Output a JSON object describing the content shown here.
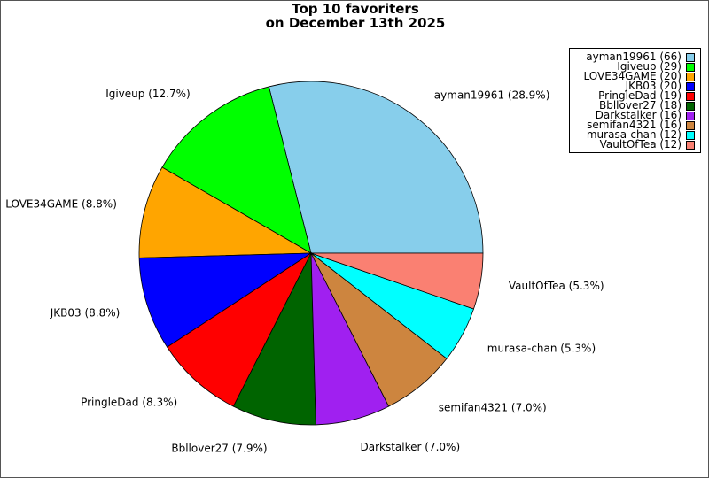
{
  "chart_data": {
    "type": "pie",
    "title": [
      "Top 10 favoriters",
      "on December 13th 2025"
    ],
    "legend_position": "top-right",
    "slices": [
      {
        "name": "ayman19961",
        "value": 66,
        "percent": "28.9%",
        "color": "#87ceeb"
      },
      {
        "name": "Igiveup",
        "value": 29,
        "percent": "12.7%",
        "color": "#00ff00"
      },
      {
        "name": "LOVE34GAME",
        "value": 20,
        "percent": "8.8%",
        "color": "#ffa500"
      },
      {
        "name": "JKB03",
        "value": 20,
        "percent": "8.8%",
        "color": "#0000ff"
      },
      {
        "name": "PringleDad",
        "value": 19,
        "percent": "8.3%",
        "color": "#ff0000"
      },
      {
        "name": "Bbllover27",
        "value": 18,
        "percent": "7.9%",
        "color": "#006400"
      },
      {
        "name": "Darkstalker",
        "value": 16,
        "percent": "7.0%",
        "color": "#a020f0"
      },
      {
        "name": "semifan4321",
        "value": 16,
        "percent": "7.0%",
        "color": "#cd853f"
      },
      {
        "name": "murasa-chan",
        "value": 12,
        "percent": "5.3%",
        "color": "#00ffff"
      },
      {
        "name": "VaultOfTea",
        "value": 12,
        "percent": "5.3%",
        "color": "#fa8072"
      }
    ]
  }
}
